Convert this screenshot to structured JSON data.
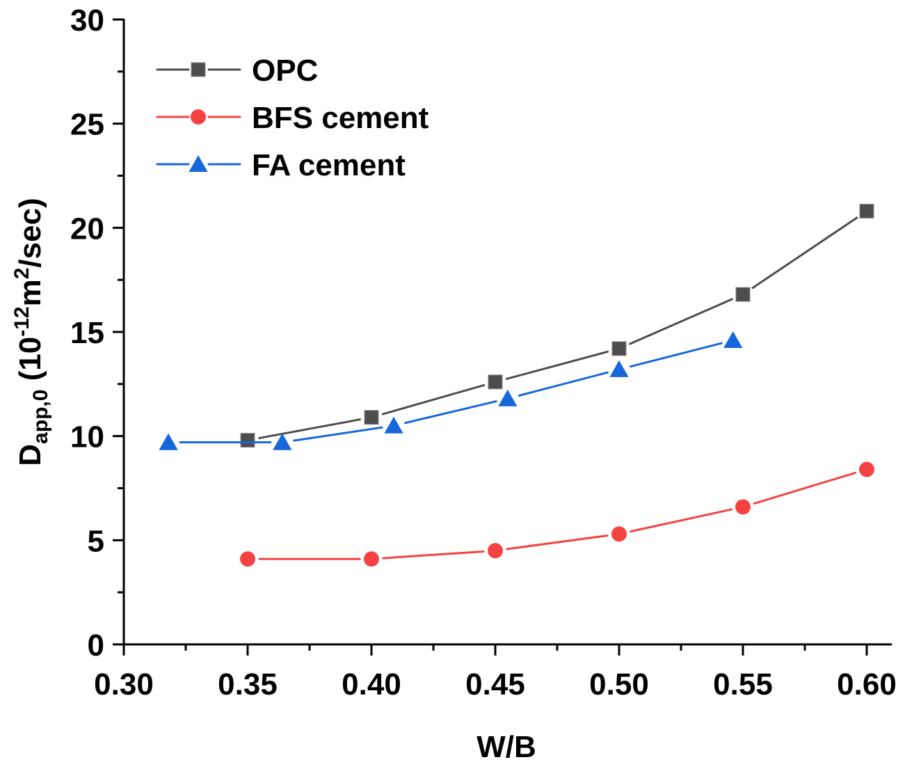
{
  "chart_data": {
    "type": "line",
    "title": "",
    "xlabel": "W/B",
    "ylabel": {
      "main": "D",
      "subscript": "app,0",
      "unit_prefix": " (10",
      "exponent": "-12",
      "unit_mid": "m",
      "unit_exp": "2",
      "unit_suffix": "/sec)"
    },
    "xlim": [
      0.3,
      0.62
    ],
    "ylim": [
      0,
      30
    ],
    "x_ticks": [
      "0.30",
      "0.35",
      "0.40",
      "0.45",
      "0.50",
      "0.55",
      "0.60"
    ],
    "x_tick_values": [
      0.3,
      0.35,
      0.4,
      0.45,
      0.5,
      0.55,
      0.6
    ],
    "y_ticks": [
      "0",
      "5",
      "10",
      "15",
      "20",
      "25",
      "30"
    ],
    "y_tick_values": [
      0,
      5,
      10,
      15,
      20,
      25,
      30
    ],
    "grid": false,
    "legend_position": "top-left",
    "series": [
      {
        "name": "OPC",
        "color": "#4d4d4d",
        "marker": "square",
        "x": [
          0.35,
          0.4,
          0.45,
          0.5,
          0.55,
          0.6
        ],
        "y": [
          9.8,
          10.9,
          12.6,
          14.2,
          16.8,
          20.8
        ]
      },
      {
        "name": "BFS cement",
        "color": "#f54343",
        "marker": "circle",
        "x": [
          0.35,
          0.4,
          0.45,
          0.5,
          0.55,
          0.6
        ],
        "y": [
          4.1,
          4.1,
          4.5,
          5.3,
          6.6,
          8.4
        ]
      },
      {
        "name": "FA cement",
        "color": "#1767dc",
        "marker": "triangle",
        "x": [
          0.318,
          0.364,
          0.409,
          0.455,
          0.5,
          0.546
        ],
        "y": [
          9.7,
          9.7,
          10.5,
          11.8,
          13.2,
          14.6
        ]
      }
    ]
  }
}
